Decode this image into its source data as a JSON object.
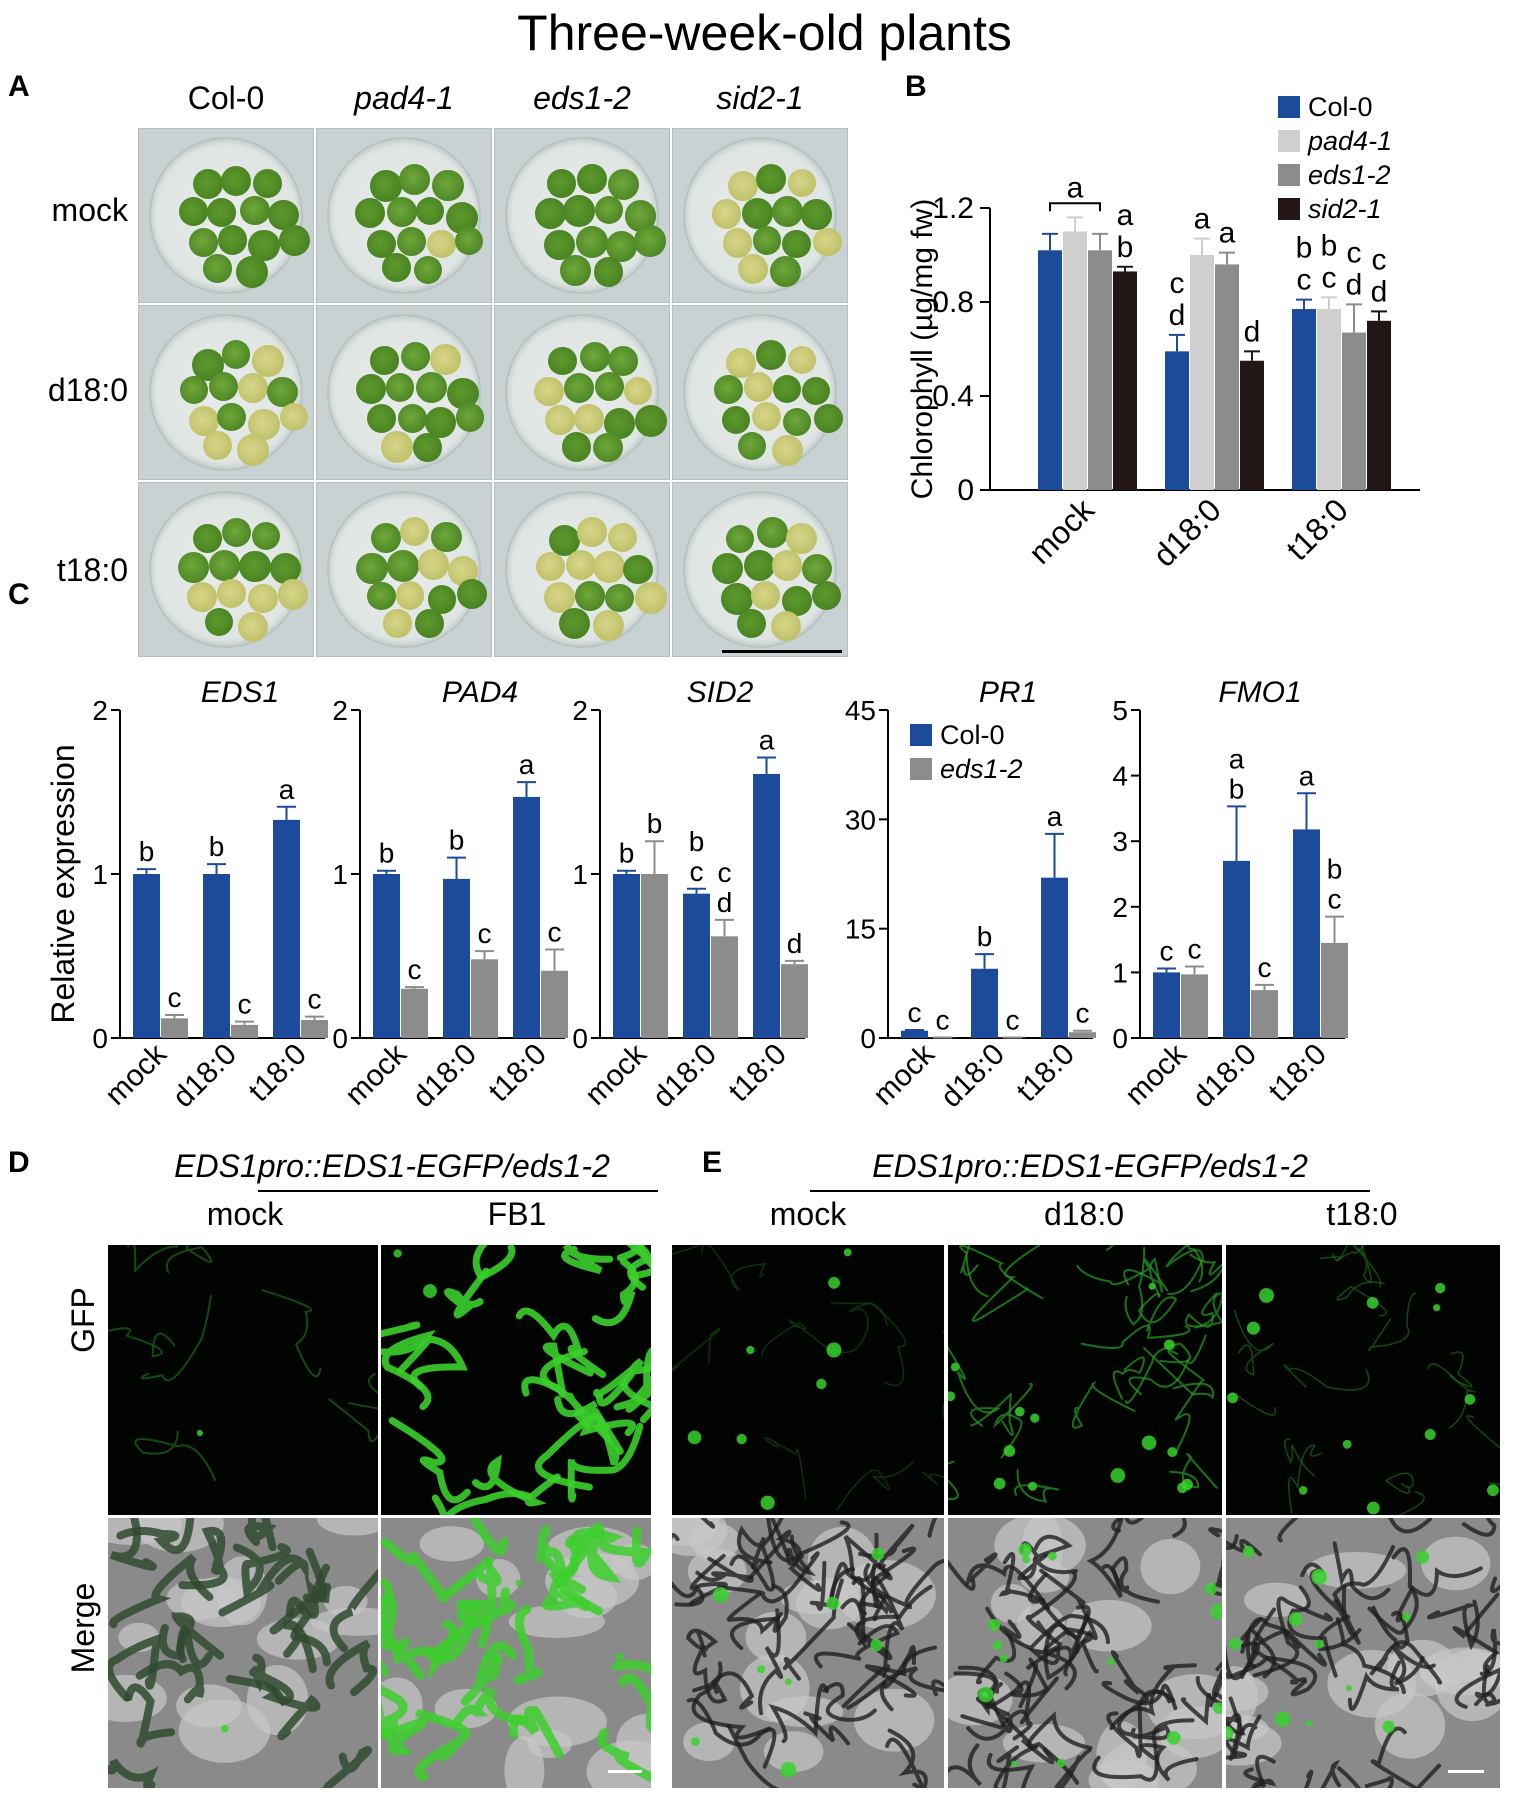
{
  "figure_title": "Three-week-old plants",
  "panel_labels": [
    "A",
    "B",
    "C",
    "D",
    "E"
  ],
  "panel_a": {
    "genotypes": [
      "Col-0",
      "pad4-1",
      "eds1-2",
      "sid2-1"
    ],
    "treatments": [
      "mock",
      "d18:0",
      "t18:0"
    ],
    "scale_bar": true
  },
  "colors": {
    "col0": "#1c4b9b",
    "pad4_1": "#cfcfcf",
    "eds1_2": "#8c8c8c",
    "sid2_1": "#231616",
    "gfp_green": "#38d12e"
  },
  "chart_data": [
    {
      "panel": "B",
      "type": "bar",
      "categories": [
        "mock",
        "d18:0",
        "t18:0"
      ],
      "ylabel": "Chlorophyll (µg/mg fw)",
      "ylim": [
        0,
        1.2
      ],
      "yticks": [
        "0",
        "0.4",
        "0.8",
        "1.2"
      ],
      "legend_position": "top-right",
      "series": [
        {
          "name": "Col-0",
          "values": [
            1.02,
            0.59,
            0.77
          ],
          "errors": [
            0.07,
            0.07,
            0.04
          ],
          "letters": [
            "",
            "c\nd",
            "b\nc"
          ]
        },
        {
          "name": "pad4-1",
          "values": [
            1.1,
            1.0,
            0.77
          ],
          "errors": [
            0.06,
            0.07,
            0.05
          ],
          "letters": [
            "",
            "a",
            "b\nc"
          ]
        },
        {
          "name": "eds1-2",
          "values": [
            1.02,
            0.96,
            0.67
          ],
          "errors": [
            0.07,
            0.05,
            0.12
          ],
          "letters": [
            "",
            "a",
            "c\nd"
          ]
        },
        {
          "name": "sid2-1",
          "values": [
            0.93,
            0.55,
            0.72
          ],
          "errors": [
            0.02,
            0.04,
            0.04
          ],
          "letters": [
            "a\nb",
            "d",
            "c\nd"
          ]
        }
      ],
      "bracket_letter": "a"
    },
    {
      "panel": "C",
      "type": "bar",
      "title": "EDS1",
      "ylabel": "Relative expression",
      "categories": [
        "mock",
        "d18:0",
        "t18:0"
      ],
      "ylim": [
        0,
        2
      ],
      "yticks": [
        "0",
        "1",
        "2"
      ],
      "series": [
        {
          "name": "Col-0",
          "values": [
            1.0,
            1.0,
            1.33
          ],
          "errors": [
            0.03,
            0.06,
            0.08
          ],
          "letters": [
            "b",
            "b",
            "a"
          ]
        },
        {
          "name": "eds1-2",
          "values": [
            0.12,
            0.08,
            0.11
          ],
          "errors": [
            0.02,
            0.02,
            0.02
          ],
          "letters": [
            "c",
            "c",
            "c"
          ]
        }
      ]
    },
    {
      "panel": "C",
      "type": "bar",
      "title": "PAD4",
      "categories": [
        "mock",
        "d18:0",
        "t18:0"
      ],
      "ylim": [
        0,
        2
      ],
      "yticks": [
        "0",
        "1",
        "2"
      ],
      "series": [
        {
          "name": "Col-0",
          "values": [
            1.0,
            0.97,
            1.47
          ],
          "errors": [
            0.02,
            0.13,
            0.09
          ],
          "letters": [
            "b",
            "b",
            "a"
          ]
        },
        {
          "name": "eds1-2",
          "values": [
            0.3,
            0.48,
            0.41
          ],
          "errors": [
            0.01,
            0.05,
            0.13
          ],
          "letters": [
            "c",
            "c",
            "c"
          ]
        }
      ]
    },
    {
      "panel": "C",
      "type": "bar",
      "title": "SID2",
      "categories": [
        "mock",
        "d18:0",
        "t18:0"
      ],
      "ylim": [
        0,
        2
      ],
      "yticks": [
        "0",
        "1",
        "2"
      ],
      "series": [
        {
          "name": "Col-0",
          "values": [
            1.0,
            0.88,
            1.61
          ],
          "errors": [
            0.02,
            0.03,
            0.1
          ],
          "letters": [
            "b",
            "b\nc",
            "a"
          ]
        },
        {
          "name": "eds1-2",
          "values": [
            1.0,
            0.62,
            0.45
          ],
          "errors": [
            0.2,
            0.1,
            0.02
          ],
          "letters": [
            "b",
            "c\nd",
            "d"
          ]
        }
      ]
    },
    {
      "panel": "C",
      "type": "bar",
      "title": "PR1",
      "categories": [
        "mock",
        "d18:0",
        "t18:0"
      ],
      "ylim": [
        0,
        45
      ],
      "yticks": [
        "0",
        "15",
        "30",
        "45"
      ],
      "legend_position": "top-left",
      "series": [
        {
          "name": "Col-0",
          "values": [
            1.0,
            9.5,
            22.0
          ],
          "errors": [
            0.1,
            2.0,
            6.0
          ],
          "letters": [
            "c",
            "b",
            "a"
          ]
        },
        {
          "name": "eds1-2",
          "values": [
            0.05,
            0.05,
            0.8
          ],
          "errors": [
            0.02,
            0.02,
            0.2
          ],
          "letters": [
            "c",
            "c",
            "c"
          ]
        }
      ]
    },
    {
      "panel": "C",
      "type": "bar",
      "title": "FMO1",
      "categories": [
        "mock",
        "d18:0",
        "t18:0"
      ],
      "ylim": [
        0,
        5
      ],
      "yticks": [
        "0",
        "1",
        "2",
        "3",
        "4",
        "5"
      ],
      "series": [
        {
          "name": "Col-0",
          "values": [
            1.0,
            2.7,
            3.18
          ],
          "errors": [
            0.06,
            0.83,
            0.55
          ],
          "letters": [
            "c",
            "a\nb",
            "a"
          ]
        },
        {
          "name": "eds1-2",
          "values": [
            0.97,
            0.73,
            1.45
          ],
          "errors": [
            0.12,
            0.08,
            0.4
          ],
          "letters": [
            "c",
            "c",
            "b\nc"
          ]
        }
      ]
    }
  ],
  "panel_d": {
    "construct": "EDS1pro::EDS1-EGFP/eds1-2",
    "columns": [
      "mock",
      "FB1"
    ],
    "rows": [
      "GFP",
      "Merge"
    ]
  },
  "panel_e": {
    "construct": "EDS1pro::EDS1-EGFP/eds1-2",
    "columns": [
      "mock",
      "d18:0",
      "t18:0"
    ]
  }
}
